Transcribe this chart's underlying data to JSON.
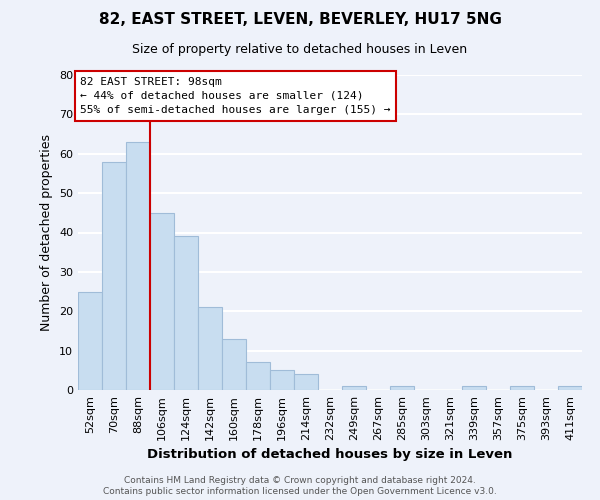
{
  "title": "82, EAST STREET, LEVEN, BEVERLEY, HU17 5NG",
  "subtitle": "Size of property relative to detached houses in Leven",
  "xlabel": "Distribution of detached houses by size in Leven",
  "ylabel": "Number of detached properties",
  "bar_color": "#c8ddf0",
  "bar_edge_color": "#a0bcd8",
  "categories": [
    "52sqm",
    "70sqm",
    "88sqm",
    "106sqm",
    "124sqm",
    "142sqm",
    "160sqm",
    "178sqm",
    "196sqm",
    "214sqm",
    "232sqm",
    "249sqm",
    "267sqm",
    "285sqm",
    "303sqm",
    "321sqm",
    "339sqm",
    "357sqm",
    "375sqm",
    "393sqm",
    "411sqm"
  ],
  "values": [
    25,
    58,
    63,
    45,
    39,
    21,
    13,
    7,
    5,
    4,
    0,
    1,
    0,
    1,
    0,
    0,
    1,
    0,
    1,
    0,
    1
  ],
  "property_line_label": "82 EAST STREET: 98sqm",
  "annotation_line1": "← 44% of detached houses are smaller (124)",
  "annotation_line2": "55% of semi-detached houses are larger (155) →",
  "annotation_box_color": "#ffffff",
  "annotation_box_edge_color": "#cc0000",
  "vline_color": "#cc0000",
  "background_color": "#eef2fa",
  "grid_color": "#ffffff",
  "ylim": [
    0,
    80
  ],
  "footer1": "Contains HM Land Registry data © Crown copyright and database right 2024.",
  "footer2": "Contains public sector information licensed under the Open Government Licence v3.0."
}
